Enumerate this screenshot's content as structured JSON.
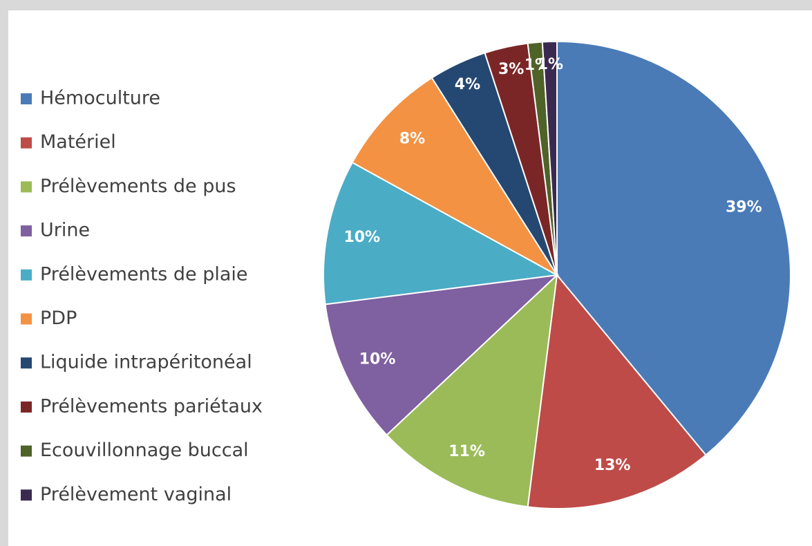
{
  "chart_data": {
    "type": "pie",
    "categories": [
      "Hémoculture",
      "Matériel",
      "Prélèvements de pus",
      "Urine",
      "Prélèvements de plaie",
      "PDP",
      "Liquide intrapéritonéal",
      "Prélèvements pariétaux",
      "Ecouvillonnage buccal",
      "Prélèvement vaginal"
    ],
    "values": [
      39,
      13,
      11,
      10,
      10,
      8,
      4,
      3,
      1,
      1
    ],
    "value_labels": [
      "39%",
      "13%",
      "11%",
      "10%",
      "10%",
      "8%",
      "4%",
      "3%",
      "1%",
      "1%"
    ],
    "colors": [
      "#4a7bb7",
      "#be4b48",
      "#9bbb59",
      "#7f60a0",
      "#4bacc6",
      "#f39243",
      "#254872",
      "#7b2626",
      "#4f6228",
      "#3b2a50"
    ],
    "legend": "left"
  }
}
